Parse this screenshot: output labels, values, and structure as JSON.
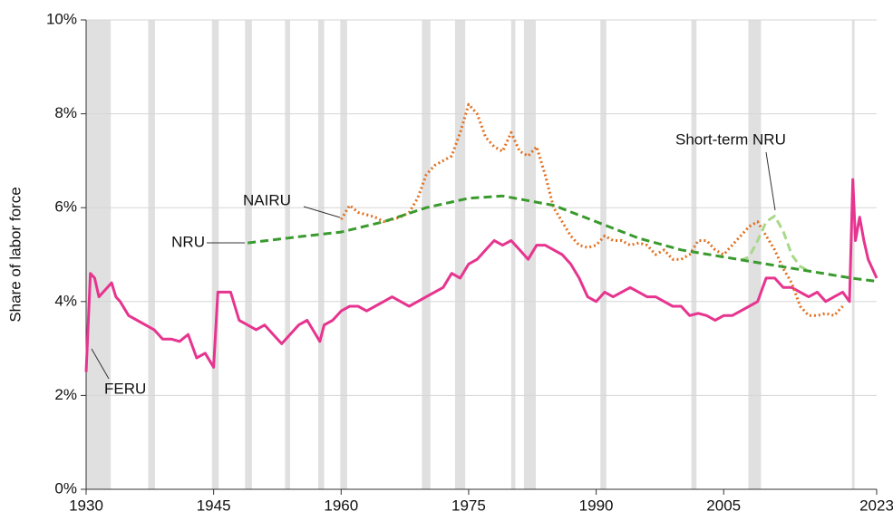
{
  "chart_data": {
    "type": "line",
    "ylabel": "Share of labor force",
    "xlim": [
      1930,
      2023
    ],
    "xticks": [
      1930,
      1945,
      1960,
      1975,
      1990,
      2005,
      2023
    ],
    "ylim": [
      0,
      10
    ],
    "yticks": [
      {
        "value": 0,
        "label": "0%"
      },
      {
        "value": 2,
        "label": "2%"
      },
      {
        "value": 4,
        "label": "4%"
      },
      {
        "value": 6,
        "label": "6%"
      },
      {
        "value": 8,
        "label": "8%"
      },
      {
        "value": 10,
        "label": "10%"
      }
    ],
    "grid": true,
    "recession_color": "#e0e0e0",
    "recessions": [
      [
        1930,
        1932.9
      ],
      [
        1937.3,
        1938.1
      ],
      [
        1944.8,
        1945.6
      ],
      [
        1948.7,
        1949.5
      ],
      [
        1953.4,
        1954.0
      ],
      [
        1957.3,
        1958.0
      ],
      [
        1959.9,
        1960.7
      ],
      [
        1969.5,
        1970.5
      ],
      [
        1973.4,
        1974.6
      ],
      [
        1980.0,
        1980.5
      ],
      [
        1981.5,
        1982.9
      ],
      [
        1990.5,
        1991.2
      ],
      [
        2001.2,
        2001.8
      ],
      [
        2007.9,
        2009.4
      ],
      [
        2020.1,
        2020.4
      ]
    ],
    "series": [
      {
        "name": "FERU",
        "color": "#e6348f",
        "dash": "solid",
        "x": [
          1930,
          1930.5,
          1931,
          1931.5,
          1932,
          1933,
          1933.5,
          1934,
          1935,
          1936,
          1937,
          1938,
          1939,
          1940,
          1941,
          1942,
          1943,
          1944,
          1945,
          1945.5,
          1946,
          1947,
          1948,
          1949,
          1950,
          1951,
          1952,
          1953,
          1954,
          1955,
          1956,
          1957,
          1957.5,
          1958,
          1959,
          1960,
          1961,
          1962,
          1963,
          1964,
          1965,
          1966,
          1967,
          1968,
          1969,
          1970,
          1971,
          1972,
          1973,
          1974,
          1975,
          1976,
          1977,
          1978,
          1979,
          1980,
          1981,
          1982,
          1983,
          1984,
          1985,
          1986,
          1987,
          1988,
          1989,
          1990,
          1991,
          1992,
          1993,
          1994,
          1995,
          1996,
          1997,
          1998,
          1999,
          2000,
          2001,
          2002,
          2003,
          2004,
          2005,
          2006,
          2007,
          2008,
          2009,
          2010,
          2011,
          2012,
          2013,
          2014,
          2015,
          2016,
          2017,
          2018,
          2019,
          2019.8,
          2020.2,
          2020.5,
          2021,
          2021.5,
          2022,
          2023
        ],
        "values": [
          2.5,
          4.6,
          4.5,
          4.1,
          4.2,
          4.4,
          4.1,
          4.0,
          3.7,
          3.6,
          3.5,
          3.4,
          3.2,
          3.2,
          3.15,
          3.3,
          2.8,
          2.9,
          2.6,
          4.2,
          4.2,
          4.2,
          3.6,
          3.5,
          3.4,
          3.5,
          3.3,
          3.1,
          3.3,
          3.5,
          3.6,
          3.3,
          3.15,
          3.5,
          3.6,
          3.8,
          3.9,
          3.9,
          3.8,
          3.9,
          4.0,
          4.1,
          4.0,
          3.9,
          4.0,
          4.1,
          4.2,
          4.3,
          4.6,
          4.5,
          4.8,
          4.9,
          5.1,
          5.3,
          5.2,
          5.3,
          5.1,
          4.9,
          5.2,
          5.2,
          5.1,
          5.0,
          4.8,
          4.5,
          4.1,
          4.0,
          4.2,
          4.1,
          4.2,
          4.3,
          4.2,
          4.1,
          4.1,
          4.0,
          3.9,
          3.9,
          3.7,
          3.75,
          3.7,
          3.6,
          3.7,
          3.7,
          3.8,
          3.9,
          4.0,
          4.5,
          4.5,
          4.3,
          4.3,
          4.2,
          4.1,
          4.2,
          4.0,
          4.1,
          4.2,
          4.0,
          6.6,
          5.3,
          5.8,
          5.3,
          4.9,
          4.5
        ]
      },
      {
        "name": "NAIRU",
        "color": "#e07020",
        "dash": "dotted",
        "x": [
          1960,
          1961,
          1962,
          1963,
          1964,
          1965,
          1966,
          1967,
          1968,
          1969,
          1970,
          1971,
          1972,
          1973,
          1974,
          1975,
          1976,
          1977,
          1978,
          1979,
          1980,
          1981,
          1982,
          1983,
          1984,
          1985,
          1986,
          1987,
          1988,
          1989,
          1990,
          1991,
          1992,
          1993,
          1994,
          1995,
          1996,
          1997,
          1998,
          1999,
          2000,
          2001,
          2002,
          2003,
          2004,
          2005,
          2006,
          2007,
          2008,
          2009,
          2010,
          2011,
          2012,
          2013,
          2014,
          2015,
          2016,
          2017,
          2018,
          2019
        ],
        "values": [
          5.75,
          6.05,
          5.9,
          5.85,
          5.8,
          5.7,
          5.75,
          5.8,
          5.9,
          6.2,
          6.7,
          6.9,
          7.0,
          7.1,
          7.6,
          8.2,
          8.0,
          7.5,
          7.3,
          7.2,
          7.6,
          7.2,
          7.1,
          7.3,
          6.7,
          6.0,
          5.7,
          5.4,
          5.2,
          5.15,
          5.2,
          5.4,
          5.3,
          5.3,
          5.2,
          5.25,
          5.2,
          5.0,
          5.1,
          4.9,
          4.9,
          5.0,
          5.3,
          5.3,
          5.1,
          5.0,
          5.2,
          5.4,
          5.6,
          5.7,
          5.4,
          5.1,
          4.7,
          4.4,
          3.9,
          3.7,
          3.7,
          3.75,
          3.7,
          3.9
        ]
      },
      {
        "name": "Short-term NRU",
        "color": "#a8d98a",
        "dash": "dashed",
        "x": [
          2007,
          2008,
          2009,
          2010,
          2011,
          2012,
          2013,
          2014,
          2015
        ],
        "values": [
          4.88,
          4.95,
          5.3,
          5.7,
          5.82,
          5.5,
          5.0,
          4.75,
          4.65
        ]
      },
      {
        "name": "NRU",
        "color": "#3a9a2e",
        "dash": "dashed",
        "x": [
          1949,
          1955,
          1960,
          1965,
          1970,
          1975,
          1979,
          1985,
          1990,
          1995,
          2000,
          2005,
          2010,
          2015,
          2020,
          2023
        ],
        "values": [
          5.25,
          5.38,
          5.48,
          5.7,
          6.0,
          6.2,
          6.25,
          6.05,
          5.7,
          5.35,
          5.1,
          4.95,
          4.8,
          4.65,
          4.5,
          4.43
        ]
      }
    ]
  }
}
